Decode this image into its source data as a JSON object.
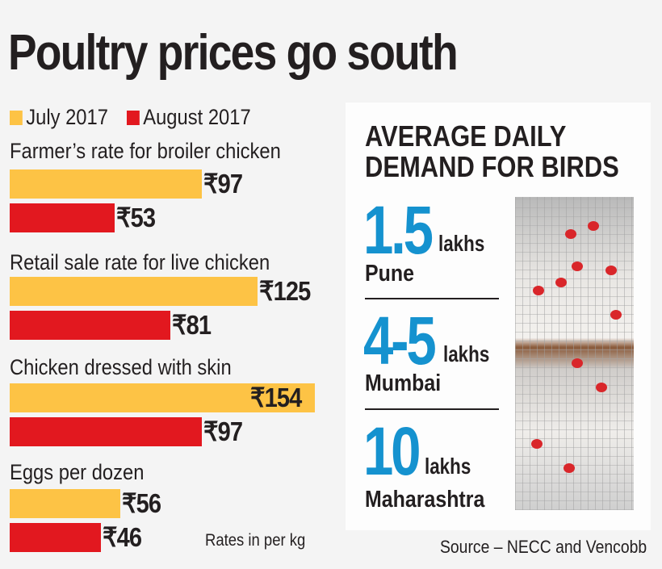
{
  "title": "Poultry prices go south",
  "chart_data": {
    "type": "bar",
    "orientation": "horizontal",
    "title": "Poultry prices go south",
    "categories": [
      "Farmer’s rate for broiler chicken",
      "Retail sale rate for live chicken",
      "Chicken dressed with skin",
      "Eggs per dozen"
    ],
    "series": [
      {
        "name": "July 2017",
        "color": "#fdc345",
        "values": [
          97,
          125,
          154,
          56
        ]
      },
      {
        "name": "August 2017",
        "color": "#e2181f",
        "values": [
          53,
          81,
          97,
          46
        ]
      }
    ],
    "value_prefix": "₹",
    "legend": "top-left",
    "note": "Rates in per kg"
  },
  "panel": {
    "title_line1": "AVERAGE DAILY",
    "title_line2": "DEMAND FOR BIRDS",
    "accent": "#1592cf",
    "items": [
      {
        "value": "1.5",
        "unit": "lakhs",
        "city": "Pune"
      },
      {
        "value": "4-5",
        "unit": "lakhs",
        "city": "Mumbai"
      },
      {
        "value": "10",
        "unit": "lakhs",
        "city": "Maharashtra"
      }
    ],
    "photo": "caged-hens-photo"
  },
  "source": "Source – NECC and Vencobb"
}
